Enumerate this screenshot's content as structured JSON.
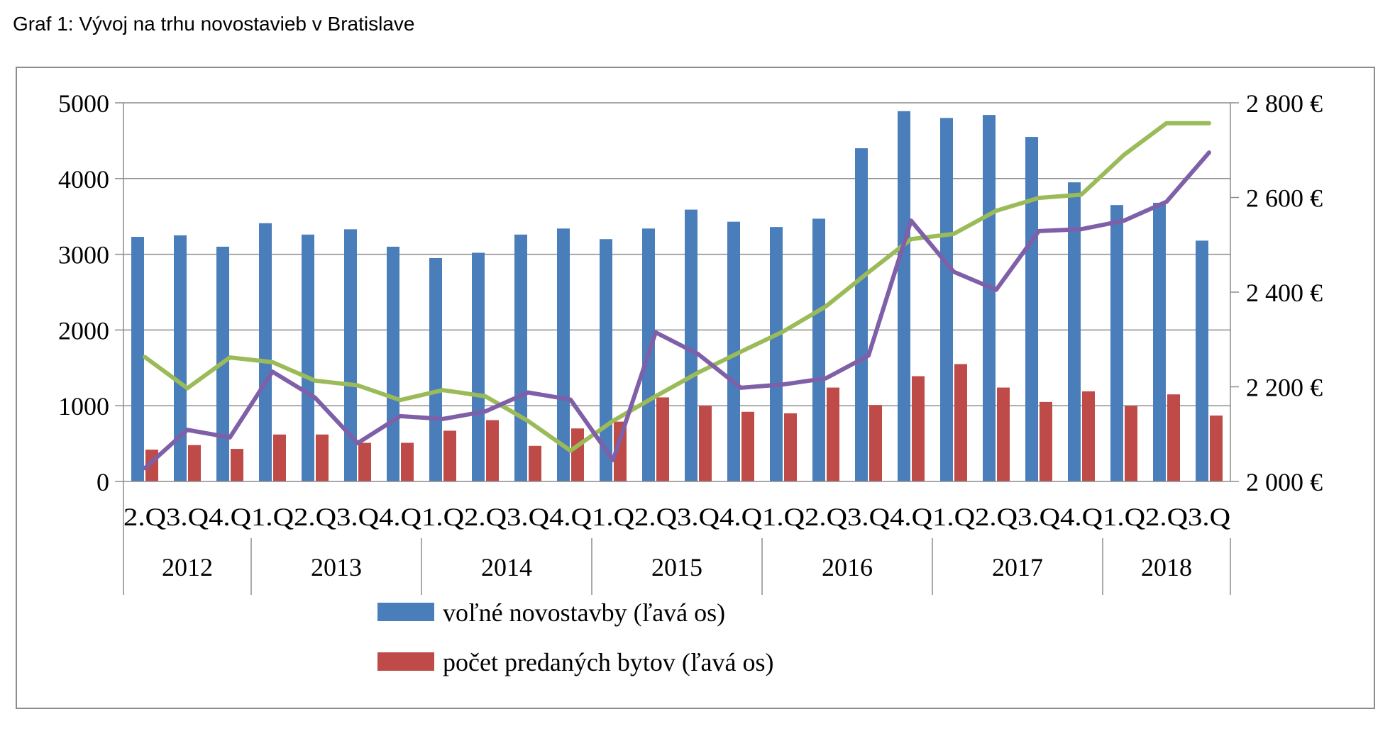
{
  "page_title": "Graf 1: Vývoj na trhu novostavieb v Bratislave",
  "chart_data": {
    "type": "bar",
    "title": "",
    "quarters": [
      "2.Q",
      "3.Q",
      "4.Q",
      "1.Q",
      "2.Q",
      "3.Q",
      "4.Q",
      "1.Q",
      "2.Q",
      "3.Q",
      "4.Q",
      "1.Q",
      "2.Q",
      "3.Q",
      "4.Q",
      "1.Q",
      "2.Q",
      "3.Q",
      "4.Q",
      "1.Q",
      "2.Q",
      "3.Q",
      "4.Q",
      "1.Q",
      "2.Q",
      "3.Q"
    ],
    "years": [
      {
        "label": "2012",
        "count": 3
      },
      {
        "label": "2013",
        "count": 4
      },
      {
        "label": "2014",
        "count": 4
      },
      {
        "label": "2015",
        "count": 4
      },
      {
        "label": "2016",
        "count": 4
      },
      {
        "label": "2017",
        "count": 4
      },
      {
        "label": "2018",
        "count": 3
      }
    ],
    "y_left": {
      "min": 0,
      "max": 5000,
      "ticks": [
        "0",
        "1000",
        "2000",
        "3000",
        "4000",
        "5000"
      ]
    },
    "y_right": {
      "min": 2000,
      "max": 2800,
      "ticks": [
        "2 000 €",
        "2 200 €",
        "2 400 €",
        "2 600 €",
        "2 800 €"
      ]
    },
    "grid": true,
    "legend_position": "bottom",
    "series": [
      {
        "name": "voľné novostavby (ľavá os)",
        "kind": "bar",
        "axis": "left",
        "color": "#4a7ebb",
        "values": [
          3230,
          3250,
          3100,
          3410,
          3260,
          3330,
          3100,
          2950,
          3020,
          3260,
          3340,
          3200,
          3340,
          3590,
          3430,
          3360,
          3470,
          4400,
          4890,
          4800,
          4840,
          4550,
          3950,
          3650,
          3680,
          3180
        ]
      },
      {
        "name": "počet predaných bytov (ľavá os)",
        "kind": "bar",
        "axis": "left",
        "color": "#be4b48",
        "values": [
          420,
          480,
          430,
          620,
          620,
          510,
          510,
          670,
          810,
          470,
          700,
          790,
          1110,
          1000,
          920,
          900,
          1240,
          1010,
          1390,
          1550,
          1240,
          1050,
          1190,
          1000,
          1150,
          870
        ]
      },
      {
        "kind": "line",
        "axis": "right",
        "color": "#9bbb59",
        "values": [
          2263,
          2197,
          2262,
          2252,
          2213,
          2203,
          2172,
          2193,
          2180,
          2128,
          2065,
          2128,
          2180,
          2230,
          2274,
          2317,
          2370,
          2442,
          2512,
          2523,
          2572,
          2599,
          2606,
          2690,
          2757,
          2757
        ]
      },
      {
        "kind": "line",
        "axis": "right",
        "color": "#7f5fa8",
        "values": [
          2028,
          2109,
          2093,
          2232,
          2177,
          2081,
          2138,
          2132,
          2148,
          2188,
          2173,
          2045,
          2315,
          2269,
          2198,
          2205,
          2218,
          2266,
          2551,
          2443,
          2405,
          2529,
          2533,
          2551,
          2591,
          2695
        ]
      }
    ]
  }
}
